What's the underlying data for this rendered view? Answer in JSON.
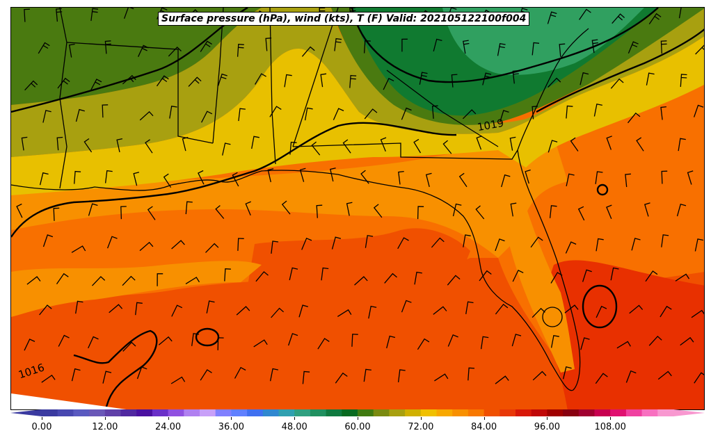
{
  "title": "Surface pressure (hPa), wind (kts), T (F) Valid: 202105122100f004",
  "isobar_labels": [
    "1019",
    "1016"
  ],
  "colorbar": {
    "tick_labels": [
      "0.00",
      "12.00",
      "24.00",
      "36.00",
      "48.00",
      "60.00",
      "72.00",
      "84.00",
      "96.00",
      "108.00"
    ],
    "colors": [
      "#3a3aa0",
      "#4848b0",
      "#5a5ac0",
      "#6a58b8",
      "#6040a8",
      "#5028a0",
      "#4a10a0",
      "#6a30c8",
      "#9050e0",
      "#b080f0",
      "#c8a0f8",
      "#8080ff",
      "#6080ff",
      "#4070f0",
      "#3088d0",
      "#30a0b0",
      "#30a080",
      "#209060",
      "#107a40",
      "#086a20",
      "#407a10",
      "#7a8a10",
      "#a8a010",
      "#d0b000",
      "#f0c000",
      "#f8a800",
      "#f89000",
      "#f87800",
      "#f05000",
      "#e83808",
      "#d81808",
      "#c00808",
      "#a00000",
      "#880010",
      "#a00030",
      "#c80050",
      "#e01070",
      "#f040a0",
      "#f870c0",
      "#f898d0"
    ]
  },
  "legend_range": {
    "min": 0,
    "max": 120,
    "step": 3
  },
  "temperature_colors": {
    "t57": "#4a7a10",
    "t63": "#a8a010",
    "t66": "#e8c000",
    "t69": "#f0b000",
    "t72": "#f89000",
    "t75": "#f87000",
    "t78": "#f05000",
    "t81": "#e83000",
    "t54": "#107a30",
    "t51": "#207a40",
    "t48": "#30a060"
  }
}
